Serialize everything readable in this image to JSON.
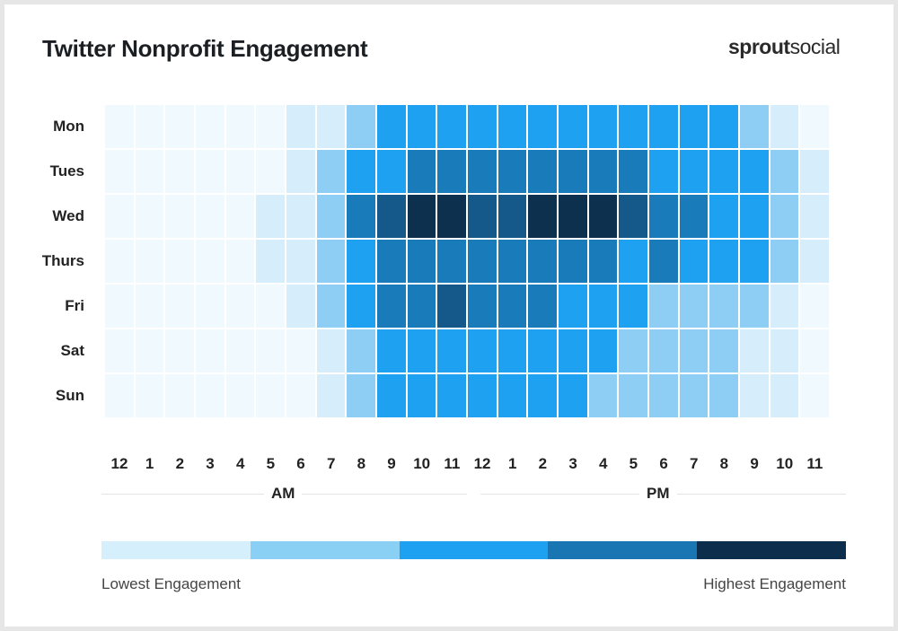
{
  "chart_data": {
    "type": "heatmap",
    "title": "Twitter Nonprofit Engagement",
    "brand": "sproutsocial",
    "rows": [
      "Mon",
      "Tues",
      "Wed",
      "Thurs",
      "Fri",
      "Sat",
      "Sun"
    ],
    "columns": [
      "12",
      "1",
      "2",
      "3",
      "4",
      "5",
      "6",
      "7",
      "8",
      "9",
      "10",
      "11",
      "12",
      "1",
      "2",
      "3",
      "4",
      "5",
      "6",
      "7",
      "8",
      "9",
      "10",
      "11"
    ],
    "period_labels": [
      "AM",
      "PM"
    ],
    "levels": [
      [
        0,
        0,
        0,
        0,
        0,
        0,
        1,
        1,
        2,
        3,
        3,
        3,
        3,
        3,
        3,
        3,
        3,
        3,
        3,
        3,
        3,
        2,
        1,
        0
      ],
      [
        0,
        0,
        0,
        0,
        0,
        0,
        1,
        2,
        3,
        3,
        4,
        4,
        4,
        4,
        4,
        4,
        4,
        4,
        3,
        3,
        3,
        3,
        2,
        1
      ],
      [
        0,
        0,
        0,
        0,
        0,
        1,
        1,
        2,
        4,
        5,
        6,
        6,
        5,
        5,
        6,
        6,
        6,
        5,
        4,
        4,
        3,
        3,
        2,
        1
      ],
      [
        0,
        0,
        0,
        0,
        0,
        1,
        1,
        2,
        3,
        4,
        4,
        4,
        4,
        4,
        4,
        4,
        4,
        3,
        4,
        3,
        3,
        3,
        2,
        1
      ],
      [
        0,
        0,
        0,
        0,
        0,
        0,
        1,
        2,
        3,
        4,
        4,
        5,
        4,
        4,
        4,
        3,
        3,
        3,
        2,
        2,
        2,
        2,
        1,
        0
      ],
      [
        0,
        0,
        0,
        0,
        0,
        0,
        0,
        1,
        2,
        3,
        3,
        3,
        3,
        3,
        3,
        3,
        3,
        2,
        2,
        2,
        2,
        1,
        1,
        0
      ],
      [
        0,
        0,
        0,
        0,
        0,
        0,
        0,
        1,
        2,
        3,
        3,
        3,
        3,
        3,
        3,
        3,
        2,
        2,
        2,
        2,
        2,
        1,
        1,
        0
      ]
    ],
    "level_colors": [
      "#f0f9fe",
      "#d6eefc",
      "#8ecef5",
      "#1da1f0",
      "#1a7bbb",
      "#14598a",
      "#0c304e"
    ],
    "legend": {
      "colors": [
        "#d6effc",
        "#8ad0f5",
        "#1da1f0",
        "#1a76b3",
        "#0c2e4c"
      ],
      "low_label": "Lowest Engagement",
      "high_label": "Highest Engagement",
      "placement": "bottom"
    }
  }
}
